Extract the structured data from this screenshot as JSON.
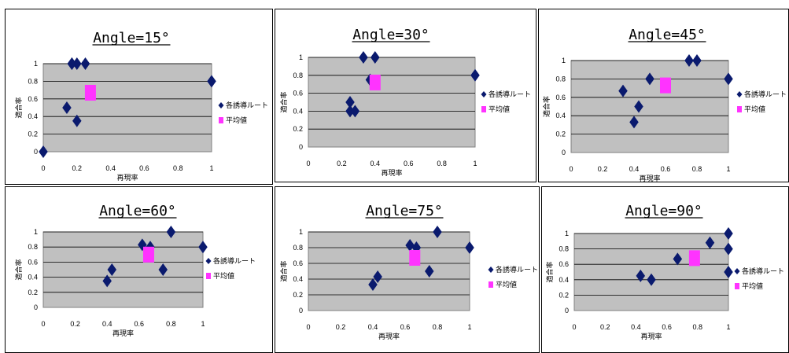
{
  "legend": {
    "series": "各誘導ルート",
    "mean": "平均値"
  },
  "colors": {
    "series": "#0a1a6e",
    "mean": "#ff33ff",
    "plot_bg": "#c0c0c0",
    "grid": "#000000"
  },
  "chart_data": [
    {
      "type": "scatter",
      "title": "Angle=15°",
      "xlabel": "再現率",
      "ylabel": "適合率",
      "xticks": [
        "0",
        "0.2",
        "0.4",
        "0.6",
        "0.8",
        "1"
      ],
      "yticks": [
        "0",
        "0.2",
        "0.4",
        "0.6",
        "0.8",
        "1"
      ],
      "xlim": [
        0,
        1
      ],
      "ylim": [
        0,
        1
      ],
      "legend_position": "right",
      "series": [
        {
          "name": "各誘導ルート",
          "x": [
            0,
            0.14,
            0.17,
            0.2,
            0.2,
            0.25,
            0.17,
            1
          ],
          "y": [
            0,
            0.5,
            1,
            1,
            0.35,
            1,
            1,
            0.8
          ]
        },
        {
          "name": "平均値",
          "x": [
            0.28
          ],
          "y": [
            0.67
          ]
        }
      ]
    },
    {
      "type": "scatter",
      "title": "Angle=30°",
      "xlabel": "再現率",
      "ylabel": "適合率",
      "xticks": [
        "0",
        "0.2",
        "0.4",
        "0.6",
        "0.8",
        "1"
      ],
      "yticks": [
        "0",
        "0.2",
        "0.4",
        "0.6",
        "0.8",
        "1"
      ],
      "xlim": [
        0,
        1
      ],
      "ylim": [
        0,
        1
      ],
      "legend_position": "right",
      "series": [
        {
          "name": "各誘導ルート",
          "x": [
            0.25,
            0.25,
            0.28,
            0.33,
            0.37,
            0.4,
            1
          ],
          "y": [
            0.4,
            0.5,
            0.4,
            1,
            0.75,
            1,
            0.8
          ]
        },
        {
          "name": "平均値",
          "x": [
            0.4
          ],
          "y": [
            0.72
          ]
        }
      ]
    },
    {
      "type": "scatter",
      "title": "Angle=45°",
      "xlabel": "再現率",
      "ylabel": "適合率",
      "xticks": [
        "0",
        "0.2",
        "0.4",
        "0.6",
        "0.8",
        "1"
      ],
      "yticks": [
        "0",
        "0.2",
        "0.4",
        "0.6",
        "0.8",
        "1"
      ],
      "xlim": [
        0,
        1
      ],
      "ylim": [
        0,
        1
      ],
      "legend_position": "right",
      "series": [
        {
          "name": "各誘導ルート",
          "x": [
            0.33,
            0.4,
            0.43,
            0.5,
            0.75,
            0.8,
            1
          ],
          "y": [
            0.67,
            0.33,
            0.5,
            0.8,
            1,
            1,
            0.8
          ]
        },
        {
          "name": "平均値",
          "x": [
            0.6
          ],
          "y": [
            0.73
          ]
        }
      ]
    },
    {
      "type": "scatter",
      "title": "Angle=60°",
      "xlabel": "再現率",
      "ylabel": "適合率",
      "xticks": [
        "0",
        "0.2",
        "0.4",
        "0.6",
        "0.8",
        "1"
      ],
      "yticks": [
        "0",
        "0.2",
        "0.4",
        "0.6",
        "0.8",
        "1"
      ],
      "xlim": [
        0,
        1
      ],
      "ylim": [
        0,
        1
      ],
      "legend_position": "right",
      "series": [
        {
          "name": "各誘導ルート",
          "x": [
            0.4,
            0.43,
            0.62,
            0.67,
            0.75,
            0.8,
            1
          ],
          "y": [
            0.35,
            0.5,
            0.83,
            0.8,
            0.5,
            1,
            0.8
          ]
        },
        {
          "name": "平均値",
          "x": [
            0.66
          ],
          "y": [
            0.7
          ]
        }
      ]
    },
    {
      "type": "scatter",
      "title": "Angle=75°",
      "xlabel": "再現率",
      "ylabel": "適合率",
      "xticks": [
        "0",
        "0.2",
        "0.4",
        "0.6",
        "0.8",
        "1"
      ],
      "yticks": [
        "0",
        "0.2",
        "0.4",
        "0.6",
        "0.8",
        "1"
      ],
      "xlim": [
        0,
        1
      ],
      "ylim": [
        0,
        1
      ],
      "legend_position": "right",
      "series": [
        {
          "name": "各誘導ルート",
          "x": [
            0.4,
            0.43,
            0.63,
            0.67,
            0.75,
            0.8,
            1
          ],
          "y": [
            0.33,
            0.43,
            0.83,
            0.8,
            0.5,
            1,
            0.8
          ]
        },
        {
          "name": "平均値",
          "x": [
            0.66
          ],
          "y": [
            0.67
          ]
        }
      ]
    },
    {
      "type": "scatter",
      "title": "Angle=90°",
      "xlabel": "再現率",
      "ylabel": "適合率",
      "xticks": [
        "0",
        "0.2",
        "0.4",
        "0.6",
        "0.8",
        "1"
      ],
      "yticks": [
        "0",
        "0.2",
        "0.4",
        "0.6",
        "0.8",
        "1"
      ],
      "xlim": [
        0,
        1
      ],
      "ylim": [
        0,
        1
      ],
      "legend_position": "right",
      "series": [
        {
          "name": "各誘導ルート",
          "x": [
            0.43,
            0.5,
            0.67,
            0.88,
            1,
            1,
            1
          ],
          "y": [
            0.45,
            0.4,
            0.67,
            0.88,
            1,
            0.8,
            0.5
          ]
        },
        {
          "name": "平均値",
          "x": [
            0.78
          ],
          "y": [
            0.68
          ]
        }
      ]
    }
  ]
}
